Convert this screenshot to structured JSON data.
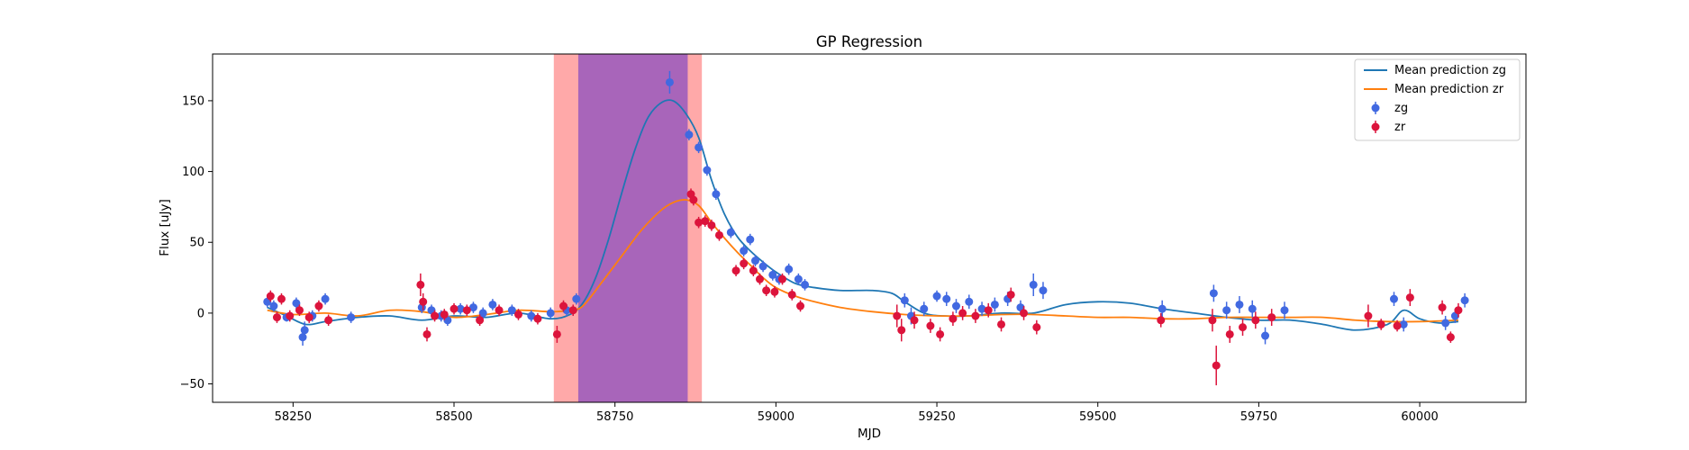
{
  "chart_data": {
    "type": "scatter",
    "title": "GP Regression",
    "xlabel": "MJD",
    "ylabel": "Flux [uJy]",
    "xlim": [
      58125,
      60165
    ],
    "ylim": [
      -63,
      183
    ],
    "xticks": [
      58250,
      58500,
      58750,
      59000,
      59250,
      59500,
      59750,
      60000
    ],
    "yticks": [
      -50,
      0,
      50,
      100,
      150
    ],
    "legend_position": "top-right",
    "shaded_regions": [
      {
        "x0": 58655,
        "x1": 58885,
        "color": "#ff6f6f"
      },
      {
        "x0": 58693,
        "x1": 58863,
        "color": "#8b4fc0"
      }
    ],
    "series": [
      {
        "name": "Mean prediction zg",
        "kind": "line",
        "color": "#1f77b4",
        "x": [
          58210,
          58240,
          58270,
          58300,
          58350,
          58400,
          58450,
          58500,
          58550,
          58600,
          58650,
          58680,
          58700,
          58720,
          58740,
          58760,
          58780,
          58800,
          58820,
          58840,
          58860,
          58880,
          58900,
          58920,
          58940,
          58960,
          58980,
          59000,
          59030,
          59060,
          59100,
          59150,
          59180,
          59200,
          59230,
          59260,
          59300,
          59350,
          59400,
          59450,
          59500,
          59550,
          59600,
          59650,
          59700,
          59750,
          59800,
          59850,
          59900,
          59950,
          59975,
          60000,
          60030,
          60060
        ],
        "y": [
          4,
          -2,
          -8,
          -6,
          -3,
          -2,
          -5,
          -2,
          -3,
          0,
          -4,
          -1,
          7,
          25,
          52,
          84,
          114,
          137,
          148,
          150,
          141,
          124,
          94,
          70,
          54,
          44,
          36,
          29,
          21,
          18,
          16,
          16,
          14,
          8,
          0,
          -2,
          -2,
          0,
          0,
          6,
          8,
          7,
          3,
          0,
          -3,
          -5,
          -5,
          -8,
          -12,
          -8,
          2,
          -4,
          -7,
          -6
        ]
      },
      {
        "name": "Mean prediction zr",
        "kind": "line",
        "color": "#ff7f0e",
        "x": [
          58210,
          58250,
          58300,
          58350,
          58400,
          58450,
          58500,
          58550,
          58600,
          58650,
          58680,
          58700,
          58730,
          58760,
          58790,
          58820,
          58840,
          58860,
          58880,
          58900,
          58920,
          58940,
          58960,
          58980,
          59000,
          59030,
          59060,
          59100,
          59150,
          59200,
          59250,
          59300,
          59350,
          59400,
          59450,
          59500,
          59550,
          59600,
          59650,
          59700,
          59750,
          59800,
          59850,
          59900,
          59950,
          60000,
          60060
        ],
        "y": [
          2,
          -1,
          0,
          -2,
          2,
          1,
          -3,
          -1,
          2,
          1,
          2,
          5,
          22,
          40,
          58,
          72,
          78,
          80,
          76,
          64,
          53,
          43,
          34,
          25,
          18,
          12,
          8,
          4,
          1,
          -1,
          -2,
          -2,
          -1,
          -1,
          -2,
          -3,
          -3,
          -4,
          -4,
          -3,
          -3,
          -3,
          -3,
          -5,
          -6,
          -6,
          -5
        ]
      },
      {
        "name": "zg",
        "kind": "points",
        "color": "#4169e1",
        "x": [
          58210,
          58220,
          58240,
          58255,
          58265,
          58268,
          58280,
          58300,
          58340,
          58450,
          58465,
          58480,
          58490,
          58510,
          58530,
          58545,
          58560,
          58590,
          58620,
          58650,
          58675,
          58690,
          58835,
          58865,
          58880,
          58893,
          58907,
          58930,
          58950,
          58960,
          58968,
          58980,
          58995,
          59005,
          59020,
          59035,
          59045,
          59200,
          59210,
          59230,
          59250,
          59265,
          59280,
          59300,
          59320,
          59340,
          59360,
          59380,
          59400,
          59415,
          59600,
          59680,
          59700,
          59720,
          59740,
          59760,
          59790,
          60040,
          60055,
          60070,
          59960,
          59975
        ],
        "y": [
          8,
          5,
          -3,
          7,
          -17,
          -12,
          -2,
          10,
          -3,
          4,
          2,
          -2,
          -5,
          3,
          4,
          0,
          6,
          2,
          -2,
          0,
          2,
          10,
          163,
          126,
          117,
          101,
          84,
          57,
          44,
          52,
          37,
          33,
          27,
          24,
          31,
          24,
          20,
          9,
          -2,
          3,
          12,
          10,
          5,
          8,
          3,
          6,
          10,
          4,
          20,
          16,
          3,
          14,
          2,
          6,
          3,
          -16,
          2,
          -7,
          -2,
          9,
          10,
          -8
        ],
        "yerr": [
          4,
          4,
          3,
          4,
          6,
          6,
          4,
          4,
          4,
          4,
          4,
          4,
          4,
          4,
          4,
          4,
          4,
          4,
          4,
          4,
          4,
          4,
          8,
          4,
          4,
          4,
          4,
          4,
          4,
          4,
          4,
          4,
          4,
          4,
          4,
          4,
          4,
          5,
          6,
          5,
          4,
          5,
          5,
          5,
          5,
          5,
          5,
          5,
          8,
          6,
          6,
          6,
          6,
          6,
          6,
          6,
          6,
          5,
          5,
          5,
          5,
          5
        ]
      },
      {
        "name": "zr",
        "kind": "points",
        "color": "#dc143c",
        "x": [
          58215,
          58225,
          58232,
          58245,
          58260,
          58275,
          58290,
          58305,
          58448,
          58452,
          58458,
          58470,
          58485,
          58500,
          58520,
          58540,
          58570,
          58600,
          58630,
          58660,
          58670,
          58685,
          58868,
          58872,
          58880,
          58890,
          58900,
          58912,
          58938,
          58950,
          58965,
          58975,
          58985,
          58998,
          59010,
          59025,
          59038,
          59188,
          59195,
          59215,
          59240,
          59255,
          59275,
          59290,
          59310,
          59330,
          59350,
          59365,
          59385,
          59405,
          59598,
          59678,
          59684,
          59705,
          59725,
          59745,
          59770,
          59920,
          59940,
          59965,
          59985,
          60035,
          60048,
          60060
        ],
        "y": [
          12,
          -3,
          10,
          -2,
          2,
          -3,
          5,
          -5,
          20,
          8,
          -15,
          -2,
          -1,
          3,
          2,
          -5,
          2,
          -1,
          -4,
          -15,
          5,
          2,
          84,
          80,
          64,
          65,
          62,
          55,
          30,
          35,
          30,
          24,
          16,
          15,
          24,
          13,
          5,
          -2,
          -12,
          -5,
          -9,
          -15,
          -4,
          0,
          -2,
          2,
          -8,
          13,
          0,
          -10,
          -5,
          -5,
          -37,
          -15,
          -10,
          -5,
          -3,
          -2,
          -8,
          -9,
          11,
          4,
          -17,
          2
        ],
        "yerr": [
          4,
          4,
          4,
          4,
          4,
          4,
          4,
          4,
          8,
          6,
          5,
          4,
          4,
          4,
          4,
          4,
          4,
          4,
          4,
          6,
          4,
          4,
          4,
          4,
          4,
          4,
          4,
          4,
          4,
          4,
          4,
          4,
          4,
          4,
          4,
          4,
          4,
          8,
          8,
          6,
          5,
          5,
          5,
          5,
          5,
          5,
          5,
          5,
          5,
          5,
          5,
          8,
          14,
          6,
          6,
          6,
          6,
          8,
          4,
          4,
          6,
          5,
          4,
          5
        ]
      }
    ]
  }
}
